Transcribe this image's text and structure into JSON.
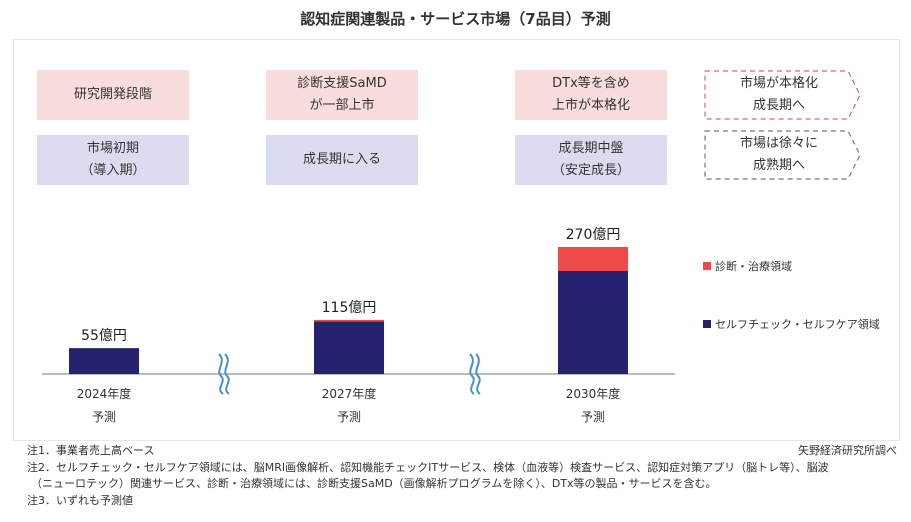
{
  "title": "認知症関連製品・サービス市場（7品目）予測",
  "stage_boxes": {
    "stage1_top": "研究開発段階",
    "stage1_bottom": "市場初期\n（導入期）",
    "stage2_top": "診断支援SaMD\nが一部上市",
    "stage2_bottom": "成長期に入る",
    "stage3_top": "DTx等を含め\n上市が本格化",
    "stage3_bottom": "成長期中盤\n（安定成長）",
    "outlook_top": "市場が本格化\n成長期へ",
    "outlook_bottom": "市場は徐々に\n成熟期へ"
  },
  "colors": {
    "selfcheck": "#25236e",
    "diagnosis": "#ee4a4a",
    "axis": "#777777",
    "wave": "#4a90c8"
  },
  "chart_data": {
    "type": "bar",
    "stacked": true,
    "unit": "億円",
    "categories": [
      "2024年度\n予測",
      "2027年度\n予測",
      "2030年度\n予測"
    ],
    "totals_labels": [
      "55億円",
      "115億円",
      "270億円"
    ],
    "series": [
      {
        "name": "セルフチェック・セルフケア領域",
        "values": [
          55,
          112,
          219
        ]
      },
      {
        "name": "診断・治療領域",
        "values": [
          0,
          3,
          51
        ]
      }
    ],
    "ylim": [
      0,
      270
    ],
    "legend_position": "right",
    "axis_break_symbol": "≈"
  },
  "notes": [
    "注1．事業者売上高ベース",
    "注2．セルフチェック・セルフケア領域には、脳MRI画像解析、認知機能チェックITサービス、検体（血液等）検査サービス、認知症対策アプリ（脳トレ等）、脳波",
    "（ニューロテック）関連サービス、診断・治療領域には、診断支援SaMD（画像解析プログラムを除く）、DTx等の製品・サービスを含む。",
    "注3．いずれも予測値"
  ],
  "source": "矢野経済研究所調べ"
}
